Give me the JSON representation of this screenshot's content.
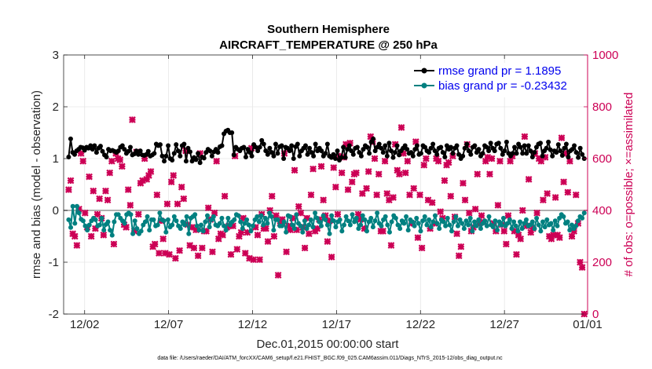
{
  "chart_data": {
    "type": "line",
    "title": "Southern Hemisphere",
    "subtitle": "AIRCRAFT_TEMPERATURE @ 250 hPa",
    "xlabel": "Dec.01,2015 00:00:00 start",
    "ylabel": "rmse and bias (model - observation)",
    "y2label": "# of obs: o=possible; ×=assimilated",
    "footnote": "data file: /Users/raeder/DAI/ATM_forcXX/CAM6_setup/f.e21.FHIST_BGC.f09_025.CAM6assim.011/Diags_NTrS_2015-12/obs_diag_output.nc",
    "xlim": [
      0,
      31.2
    ],
    "ylim": [
      -2,
      3
    ],
    "y2lim": [
      0,
      1000
    ],
    "xticks": [
      1.25,
      6.25,
      11.25,
      16.25,
      21.25,
      26.25,
      31.25
    ],
    "xticklabels": [
      "12/02",
      "12/07",
      "12/12",
      "12/17",
      "12/22",
      "12/27",
      "01/01"
    ],
    "yticks": [
      -2,
      -1,
      0,
      1,
      2,
      3
    ],
    "yticklabels": [
      "-2",
      "-1",
      "0",
      "1",
      "2",
      "3"
    ],
    "y2ticks": [
      0,
      200,
      400,
      600,
      800,
      1000
    ],
    "y2ticklabels": [
      "0",
      "200",
      "400",
      "600",
      "800",
      "1000"
    ],
    "zero_line": 0,
    "legend_position": "top-right",
    "colors": {
      "rmse": "#000000",
      "bias": "#008080",
      "obs": "#cc0055",
      "zero": "#b0b0b0",
      "grid": "#e6e6e6"
    },
    "series": [
      {
        "name": "rmse grand pr = 1.1895",
        "key": "rmse",
        "values": [
          1.03,
          1.38,
          1.12,
          1.08,
          1.15,
          1.18,
          1.22,
          1.21,
          1.16,
          1.22,
          1.2,
          1.25,
          1.18,
          1.25,
          1.12,
          1.2,
          1.24,
          1.14,
          1.07,
          1.03,
          1.18,
          1.15,
          1.16,
          1.14,
          1.12,
          1.15,
          1.22,
          1.25,
          1.18,
          1.1,
          1.14,
          1.22,
          1.07,
          1.09,
          1.15,
          1.08,
          1.15,
          1.07,
          1.06,
          1.08,
          1.14,
          1.05,
          1.07,
          1.1,
          1.28,
          1.25,
          1.27,
          1.05,
          0.95,
          1.05,
          1.25,
          1.0,
          0.97,
          1.1,
          1.27,
          1.15,
          1.05,
          1.25,
          1.28,
          0.95,
          1.2,
          1.13,
          0.95,
          1.02,
          0.98,
          1.1,
          0.92,
          1.03,
          1.01,
          1.12,
          1.18,
          1.15,
          1.05,
          1.13,
          1.18,
          1.12,
          1.23,
          1.25,
          1.48,
          1.53,
          1.55,
          1.5,
          1.5,
          1.07,
          1.22,
          1.18,
          1.15,
          1.2,
          1.22,
          1.03,
          1.18,
          1.12,
          1.05,
          1.27,
          1.22,
          1.15,
          1.22,
          1.35,
          1.28,
          1.15,
          1.08,
          1.2,
          1.12,
          1.05,
          1.28,
          1.1,
          1.23,
          1.25,
          1.0,
          1.22,
          1.2,
          1.15,
          1.25,
          1.0,
          1.23,
          1.28,
          1.05,
          1.15,
          1.2,
          1.25,
          1.08,
          1.2,
          1.12,
          1.05,
          1.28,
          1.15,
          1.2,
          1.15,
          1.05,
          1.1,
          1.28,
          1.05,
          1.02,
          1.08,
          1.0,
          1.15,
          0.97,
          1.02,
          1.22,
          1.02,
          1.18,
          1.25,
          1.15,
          1.08,
          1.2,
          1.22,
          1.12,
          1.05,
          1.18,
          1.25,
          1.22,
          1.1,
          1.32,
          1.38,
          1.15,
          1.22,
          1.28,
          1.2,
          1.12,
          1.25,
          1.05,
          1.3,
          1.15,
          1.02,
          1.12,
          1.25,
          1.07,
          1.15,
          1.2,
          1.25,
          1.18,
          1.1,
          1.12,
          1.05,
          1.18,
          1.25,
          1.08,
          1.1,
          1.25,
          1.22,
          1.15,
          1.12,
          1.2,
          1.28,
          1.15,
          1.08,
          1.2,
          1.22,
          1.12,
          1.03,
          1.25,
          1.18,
          1.22,
          1.1,
          1.2,
          1.25,
          1.08,
          1.0,
          1.05,
          1.2,
          1.28,
          1.15,
          1.08,
          1.22,
          1.25,
          1.12,
          1.18,
          1.05,
          1.1,
          1.25,
          1.22,
          1.15,
          1.3,
          1.2,
          1.15,
          1.28,
          1.3,
          1.2,
          1.08,
          1.15,
          1.32,
          1.1,
          1.05,
          1.1,
          1.22,
          1.1,
          1.28,
          1.22,
          1.1,
          1.25,
          1.1,
          1.25,
          1.15,
          1.03,
          1.12,
          1.22,
          1.28,
          1.3,
          1.05,
          1.15,
          1.2,
          1.32,
          1.17,
          1.05,
          1.15,
          1.12,
          1.27,
          1.15,
          1.06,
          1.2,
          1.28,
          1.03,
          1.15,
          1.18,
          1.25,
          1.12,
          1.02,
          1.2,
          1.08,
          1.0
        ]
      },
      {
        "name": "bias grand pr = -0.23432",
        "key": "bias",
        "values": [
          -0.18,
          -0.33,
          0.08,
          -0.25,
          0.08,
          -0.05,
          -0.17,
          -0.2,
          -0.3,
          -0.38,
          -0.28,
          -0.2,
          -0.15,
          -0.18,
          -0.3,
          -0.28,
          -0.15,
          -0.38,
          -0.27,
          -0.22,
          -0.38,
          -0.48,
          -0.22,
          -0.08,
          -0.08,
          -0.15,
          -0.2,
          -0.25,
          -0.08,
          -0.05,
          -0.08,
          -0.45,
          -0.2,
          -0.35,
          -0.45,
          -0.4,
          -0.28,
          -0.22,
          -0.12,
          -0.38,
          -0.18,
          -0.18,
          -0.3,
          -0.28,
          -0.05,
          -0.18,
          -0.2,
          -0.42,
          -0.18,
          -0.32,
          -0.28,
          -0.12,
          -0.2,
          -0.3,
          -0.35,
          -0.22,
          -0.28,
          -0.12,
          -0.45,
          -0.15,
          -0.12,
          -0.08,
          -0.3,
          -0.38,
          -0.28,
          -0.4,
          -0.22,
          -0.1,
          -0.32,
          -0.18,
          -0.12,
          -0.28,
          -0.3,
          -0.25,
          -0.15,
          -0.3,
          -0.38,
          -0.15,
          -0.28,
          -0.22,
          -0.18,
          -0.08,
          -0.1,
          -0.22,
          -0.35,
          -0.25,
          -0.18,
          -0.28,
          -0.4,
          -0.3,
          -0.18,
          -0.12,
          -0.22,
          -0.1,
          -0.28,
          -0.15,
          -0.25,
          -0.05,
          -0.12,
          -0.38,
          -0.18,
          -0.18,
          -0.3,
          -0.3,
          -0.22,
          -0.42,
          -0.1,
          -0.12,
          -0.28,
          -0.35,
          -0.08,
          -0.25,
          -0.3,
          -0.42,
          -0.2,
          -0.35,
          -0.28,
          -0.18,
          -0.32,
          -0.05,
          -0.15,
          -0.22,
          -0.3,
          -0.1,
          -0.18,
          -0.28,
          -0.45,
          -0.1,
          -0.2,
          -0.32,
          -0.22,
          -0.18,
          -0.4,
          -0.28,
          -0.12,
          -0.2,
          -0.28,
          -0.08,
          -0.22,
          -0.15,
          -0.35,
          -0.28,
          -0.1,
          -0.18,
          -0.4,
          -0.22,
          -0.15,
          -0.32,
          -0.2,
          -0.05,
          -0.25,
          -0.3,
          -0.18,
          -0.12,
          -0.28,
          -0.42,
          -0.22,
          -0.1,
          -0.15,
          -0.28,
          -0.35,
          -0.2,
          -0.25,
          -0.12,
          -0.38,
          -0.18,
          -0.22,
          -0.3,
          -0.15,
          -0.25,
          -0.4,
          -0.2,
          -0.12,
          -0.28,
          -0.18,
          -0.32,
          -0.22,
          -0.1,
          -0.25,
          -0.35,
          -0.18,
          -0.22,
          -0.3,
          -0.15,
          -0.28,
          -0.4,
          -0.22,
          -0.12,
          -0.3,
          -0.18,
          -0.25,
          -0.35,
          -0.2,
          -0.28,
          -0.15,
          -0.4,
          -0.22,
          -0.3,
          -0.18,
          -0.35,
          -0.25,
          -0.2,
          -0.3,
          -0.12,
          -0.28,
          -0.32,
          -0.2,
          -0.38,
          -0.22,
          -0.28,
          -0.15,
          -0.3,
          -0.25,
          -0.18,
          -0.35,
          -0.22,
          -0.3,
          -0.4,
          -0.22,
          -0.35,
          -0.25,
          -0.18,
          -0.3,
          -0.28,
          -0.22,
          -0.35,
          -0.15,
          -0.28,
          -0.4,
          -0.22,
          -0.32,
          -0.18,
          -0.28,
          -0.25,
          -0.38,
          -0.2,
          -0.3,
          -0.15,
          -0.08,
          -0.12,
          -0.25,
          -0.22,
          -0.38,
          -0.28,
          -0.35,
          -0.3,
          -0.2,
          -0.12,
          -0.15,
          -0.05
        ]
      },
      {
        "name": "# of obs assimilated",
        "key": "obs",
        "values": [
          480,
          515,
          310,
          300,
          265,
          405,
          620,
          590,
          390,
          335,
          530,
          300,
          475,
          330,
          385,
          445,
          370,
          305,
          475,
          440,
          545,
          590,
          270,
          620,
          600,
          595,
          570,
          345,
          335,
          480,
          420,
          750,
          320,
          625,
          385,
          505,
          515,
          600,
          520,
          535,
          550,
          260,
          270,
          460,
          235,
          360,
          290,
          235,
          425,
          230,
          510,
          535,
          215,
          425,
          245,
          490,
          445,
          630,
          345,
          265,
          335,
          255,
          325,
          225,
          620,
          255,
          320,
          320,
          410,
          365,
          240,
          390,
          590,
          290,
          310,
          305,
          455,
          335,
          340,
          230,
          340,
          610,
          250,
          300,
          315,
          370,
          235,
          315,
          215,
          640,
          210,
          335,
          305,
          210,
          385,
          330,
          330,
          280,
          400,
          455,
          300,
          380,
          150,
          350,
          365,
          620,
          240,
          340,
          325,
          370,
          555,
          325,
          415,
          390,
          335,
          255,
          370,
          310,
          460,
          560,
          320,
          330,
          365,
          570,
          440,
          380,
          280,
          360,
          220,
          565,
          490,
          385,
          610,
          545,
          605,
          655,
          480,
          660,
          510,
          540,
          545,
          385,
          365,
          465,
          330,
          485,
          550,
          685,
          665,
          600,
          460,
          540,
          320,
          320,
          590,
          465,
          440,
          265,
          450,
          655,
          555,
          540,
          720,
          620,
          545,
          590,
          460,
          350,
          485,
          665,
          295,
          460,
          255,
          575,
          600,
          440,
          330,
          430,
          350,
          600,
          590,
          395,
          370,
          515,
          575,
          585,
          455,
          610,
          375,
          310,
          225,
          260,
          505,
          440,
          655,
          390,
          320,
          335,
          405,
          540,
          350,
          380,
          355,
          590,
          605,
          540,
          600,
          350,
          320,
          420,
          590,
          345,
          320,
          270,
          380,
          590,
          610,
          320,
          230,
          305,
          290,
          400,
          685,
          340,
          520,
          315,
          330,
          620,
          390,
          600,
          590,
          440,
          605,
          465,
          300,
          290,
          305,
          450,
          305,
          295,
          680,
          510,
          620,
          470,
          590,
          300,
          320,
          460,
          350,
          200,
          180,
          0
        ]
      }
    ]
  },
  "x_markers": {
    "obs_extra_x": [
      31.15
    ]
  }
}
